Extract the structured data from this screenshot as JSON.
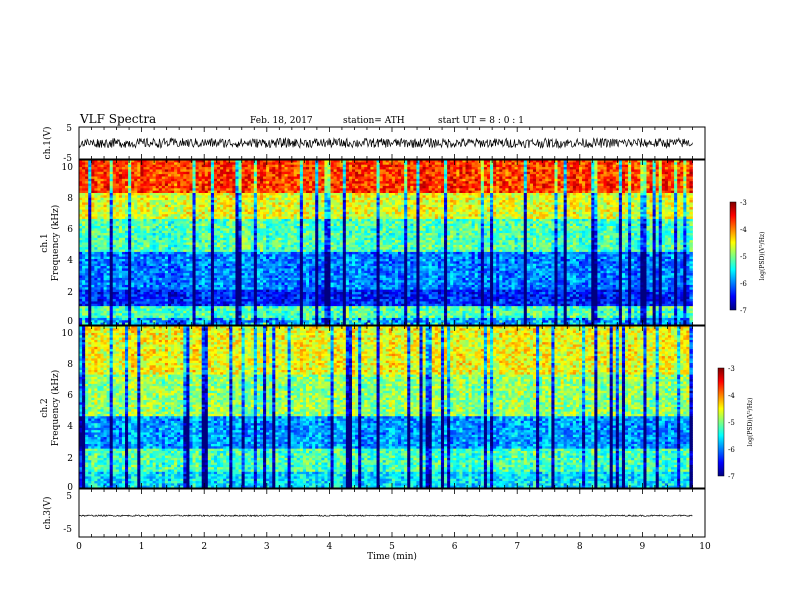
{
  "chart_data": [
    {
      "type": "line",
      "title": "VLF Spectra",
      "date": "Feb. 18, 2017",
      "station": "station= ATH",
      "start_ut": "start  UT =   8 : 0  : 1",
      "ylabel": "ch.1(V)",
      "ylim": [
        -5,
        5
      ],
      "yticks": [
        "5",
        "-5"
      ],
      "xlim": [
        0,
        10
      ],
      "series": [
        {
          "x": [
            0,
            9.8
          ],
          "values_range": [
            -1.5,
            1.5
          ]
        }
      ]
    },
    {
      "type": "heatmap",
      "ylabel_line1": "ch.1",
      "ylabel_line2": "Frequency  (kHz)",
      "xlim": [
        0,
        10
      ],
      "ylim": [
        0,
        10
      ],
      "yticks": [
        "0",
        "2",
        "4",
        "6",
        "8",
        "10"
      ],
      "x_data_end": 9.8,
      "colorbar": {
        "label": "log(PSD)(V²/Hz)",
        "range": [
          -7,
          -3
        ],
        "ticks": [
          "-3",
          "-4",
          "-5",
          "-6",
          "-7"
        ]
      }
    },
    {
      "type": "heatmap",
      "ylabel_line1": "ch.2",
      "ylabel_line2": "Frequency  (kHz)",
      "xlim": [
        0,
        10
      ],
      "ylim": [
        0,
        10
      ],
      "yticks": [
        "0",
        "2",
        "4",
        "6",
        "8",
        "10"
      ],
      "x_data_end": 9.8,
      "colorbar": {
        "label": "log(PSD)(V²/Hz)",
        "range": [
          -7,
          -3
        ],
        "ticks": [
          "-3",
          "-4",
          "-5",
          "-6",
          "-7"
        ]
      }
    },
    {
      "type": "line",
      "ylabel": "ch.3(V)",
      "ylim": [
        -5,
        5
      ],
      "yticks": [
        "5",
        "-5"
      ],
      "xlim": [
        0,
        10
      ],
      "xlabel": "Time  (min)",
      "xticks": [
        "0",
        "1",
        "2",
        "3",
        "4",
        "5",
        "6",
        "7",
        "8",
        "9",
        "10"
      ],
      "series": [
        {
          "x": [
            0,
            9.8
          ],
          "values_range": [
            -0.8,
            -0.3
          ]
        }
      ]
    }
  ]
}
